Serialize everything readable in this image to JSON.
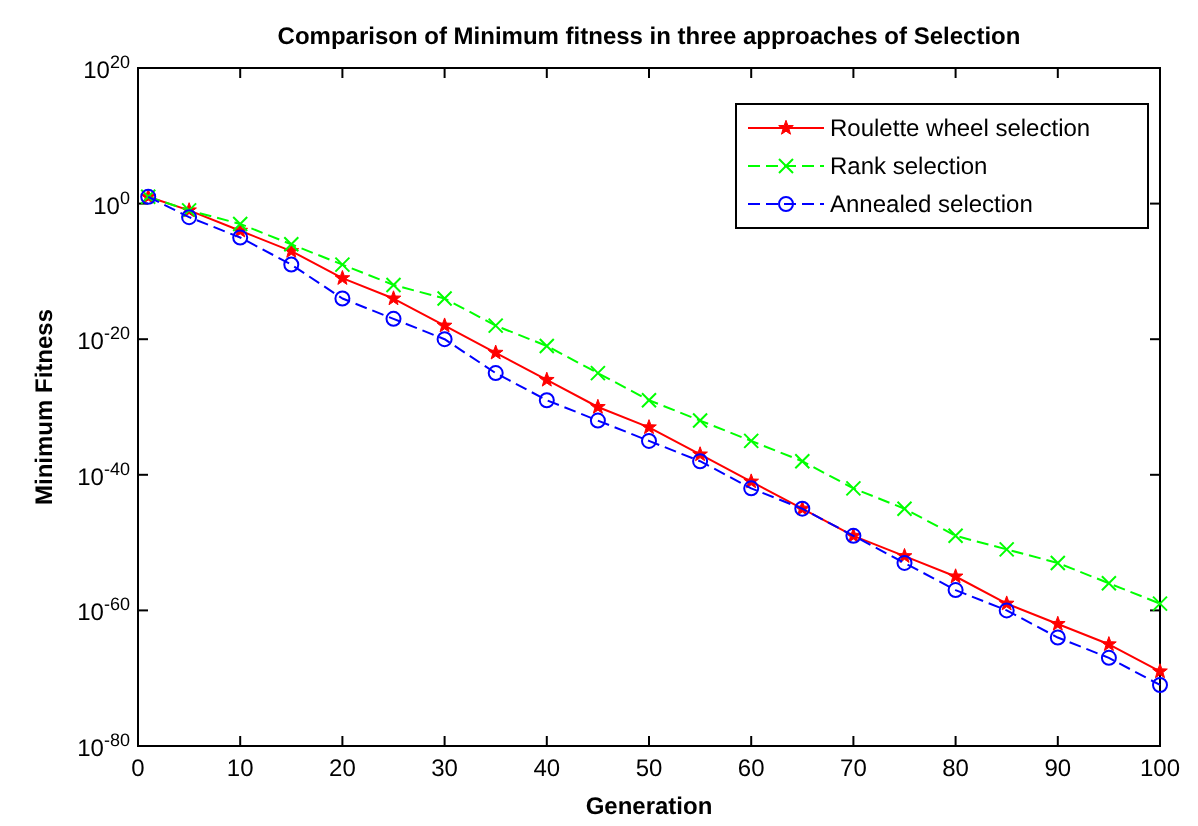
{
  "chart_data": {
    "type": "line",
    "title": "Comparison of Minimum fitness in three approaches of Selection",
    "xlabel": "Generation",
    "ylabel": "Minimum Fitness",
    "log": "y",
    "grid": false,
    "legend": "top right",
    "x": [
      1,
      5,
      10,
      15,
      20,
      25,
      30,
      35,
      40,
      45,
      50,
      55,
      60,
      65,
      70,
      75,
      80,
      85,
      90,
      95,
      100
    ],
    "xlim": [
      0,
      100
    ],
    "xticks": [
      0,
      10,
      20,
      30,
      40,
      50,
      60,
      70,
      80,
      90,
      100
    ],
    "ylim": [
      1e-80,
      1e+20
    ],
    "yticks": [
      {
        "value": 1e-80,
        "label": "10$^{-80}$"
      },
      {
        "value": 1e-60,
        "label": "10$^{-60}$"
      },
      {
        "value": 1e-40,
        "label": "10$^{-40}$"
      },
      {
        "value": 1e-20,
        "label": "10$^{-20}$"
      },
      {
        "value": 1,
        "label": "10$^{0}$"
      },
      {
        "value": 1e+20,
        "label": "10$^{20}$"
      }
    ],
    "series": [
      {
        "name": "Roulette wheel selection",
        "color": "#ff0000",
        "marker": "star",
        "line_style": "solid",
        "values": [
          10.0,
          0.1,
          0.0001,
          1e-07,
          1e-11,
          1e-14,
          1e-18,
          1e-22,
          1e-26,
          1e-30,
          1e-33,
          1e-37,
          1e-41,
          1e-45,
          1e-49,
          1e-52,
          1e-55,
          1e-59,
          1e-62,
          1e-65,
          1e-69
        ]
      },
      {
        "name": "Rank selection",
        "color": "#00ff00",
        "marker": "cross",
        "line_style": "dashed",
        "values": [
          10.0,
          0.1,
          0.001,
          1e-06,
          1e-09,
          1e-12,
          1e-14,
          1e-18,
          1e-21,
          1e-25,
          1e-29,
          1e-32,
          1e-35,
          1e-38,
          1e-42,
          1e-45,
          1e-49,
          1e-51,
          1e-53,
          1e-56,
          1e-59
        ]
      },
      {
        "name": "Annealed selection",
        "color": "#0000ff",
        "marker": "circle",
        "line_style": "dashed",
        "values": [
          10.0,
          0.01,
          1e-05,
          1e-09,
          1e-14,
          1e-17,
          1e-20,
          1e-25,
          1e-29,
          1e-32,
          1e-35,
          1e-38,
          1e-42,
          1e-45,
          1e-49,
          1e-53,
          1e-57,
          1e-60,
          1e-64,
          1e-67,
          1e-71
        ]
      }
    ]
  }
}
